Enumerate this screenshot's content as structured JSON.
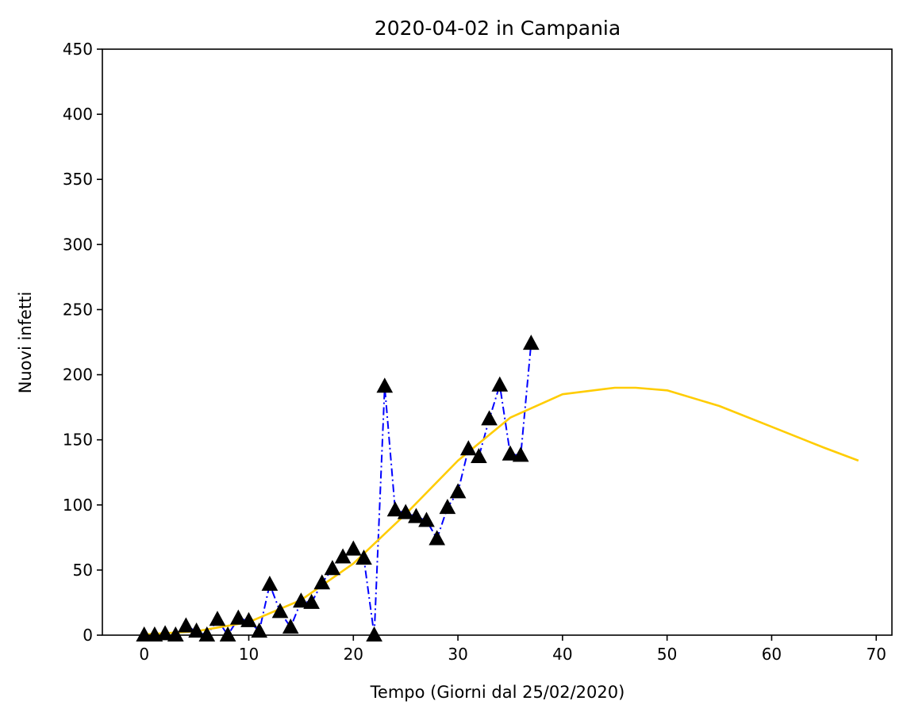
{
  "chart_data": {
    "type": "line",
    "title": "2020-04-02 in Campania",
    "xlabel": "Tempo (Giorni dal 25/02/2020)",
    "ylabel": "Nuovi infetti",
    "xlim": [
      -4,
      71.5
    ],
    "ylim": [
      0,
      450
    ],
    "xticks": [
      0,
      10,
      20,
      30,
      40,
      50,
      60,
      70
    ],
    "yticks": [
      0,
      50,
      100,
      150,
      200,
      250,
      300,
      350,
      400,
      450
    ],
    "grid": false,
    "series": [
      {
        "style": "dashdot-triangle-markers",
        "line_color": "#0000ff",
        "marker_color": "#000000",
        "x": [
          0,
          1,
          2,
          3,
          4,
          5,
          6,
          7,
          8,
          9,
          10,
          11,
          12,
          13,
          14,
          15,
          16,
          17,
          18,
          19,
          20,
          21,
          22,
          23,
          24,
          25,
          26,
          27,
          28,
          29,
          30,
          31,
          32,
          33,
          34,
          35,
          36,
          37
        ],
        "y": [
          0,
          0,
          1,
          0,
          7,
          3,
          0,
          12,
          0,
          13,
          11,
          3,
          39,
          18,
          6,
          26,
          25,
          40,
          51,
          60,
          66,
          59,
          0,
          191,
          96,
          94,
          91,
          88,
          74,
          98,
          110,
          143,
          137,
          166,
          192,
          139,
          138,
          224
        ]
      },
      {
        "style": "solid-curve",
        "line_color": "#ffcc00",
        "x": [
          0,
          5,
          10,
          15,
          20,
          25,
          30,
          35,
          40,
          45,
          47,
          50,
          55,
          60,
          65,
          68.3
        ],
        "y": [
          0.5,
          3,
          10,
          27,
          55,
          93,
          134,
          167,
          185,
          190,
          190,
          188,
          176,
          160,
          144,
          134
        ]
      }
    ]
  }
}
